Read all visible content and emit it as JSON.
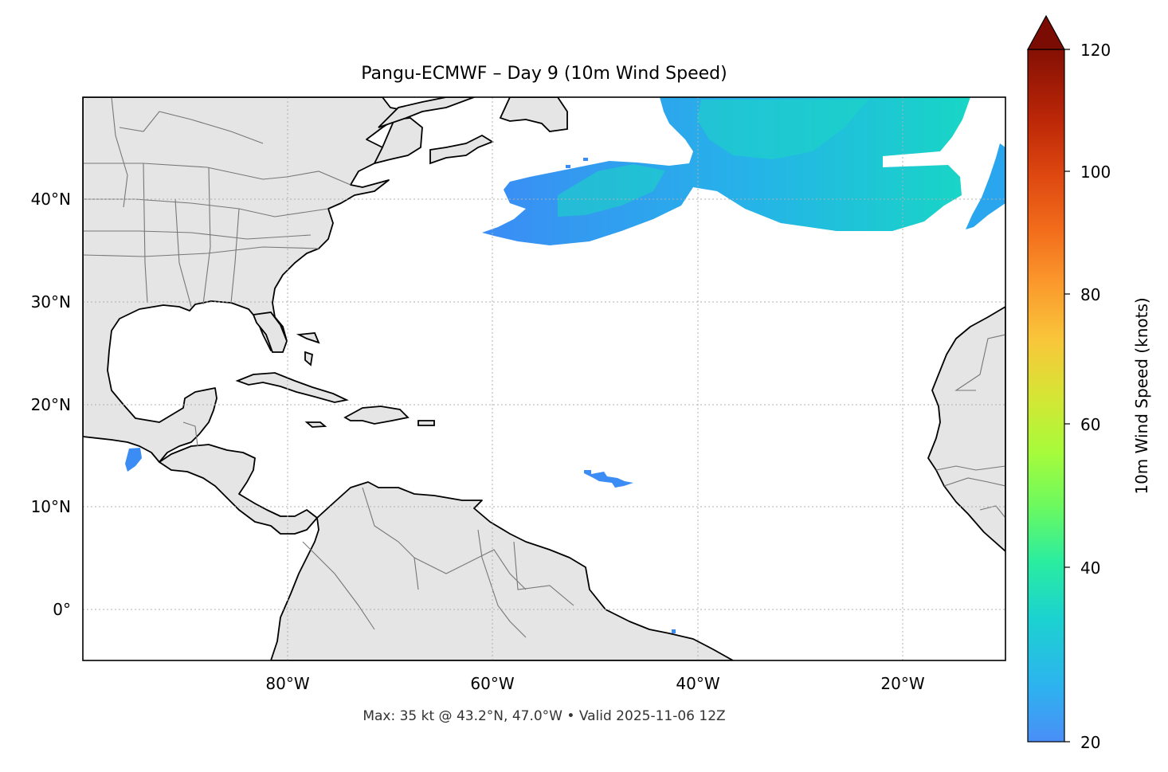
{
  "title": "Pangu-ECMWF – Day 9 (10m Wind Speed)",
  "footer": "Max: 35 kt @ 43.2°N, 47.0°W • Valid 2025-11-06 12Z",
  "colorbar": {
    "label": "10m Wind Speed (knots)",
    "ticks": [
      "20",
      "40",
      "60",
      "80",
      "100",
      "120"
    ],
    "min": 20,
    "max": 120,
    "extend": "max",
    "colormap": "turbo"
  },
  "map": {
    "lat_labels": [
      "40°N",
      "30°N",
      "20°N",
      "10°N",
      "0°"
    ],
    "lon_labels": [
      "80°W",
      "60°W",
      "40°W",
      "20°W"
    ],
    "extent_deg": {
      "lon_min": -100,
      "lon_max": -10,
      "lat_min": -5,
      "lat_max": 50
    },
    "gridlines": "dotted",
    "land_color": "#e5e5e5",
    "coast_color": "#000000",
    "border_color": "#777777"
  },
  "wind_field": {
    "max_kt": 35,
    "max_location": "43.2°N, 47.0°W",
    "regions": [
      "north-atlantic-jet",
      "eastern-atlantic-band",
      "central-atlantic-patch",
      "pacific-patch",
      "equatorial-speck"
    ]
  }
}
